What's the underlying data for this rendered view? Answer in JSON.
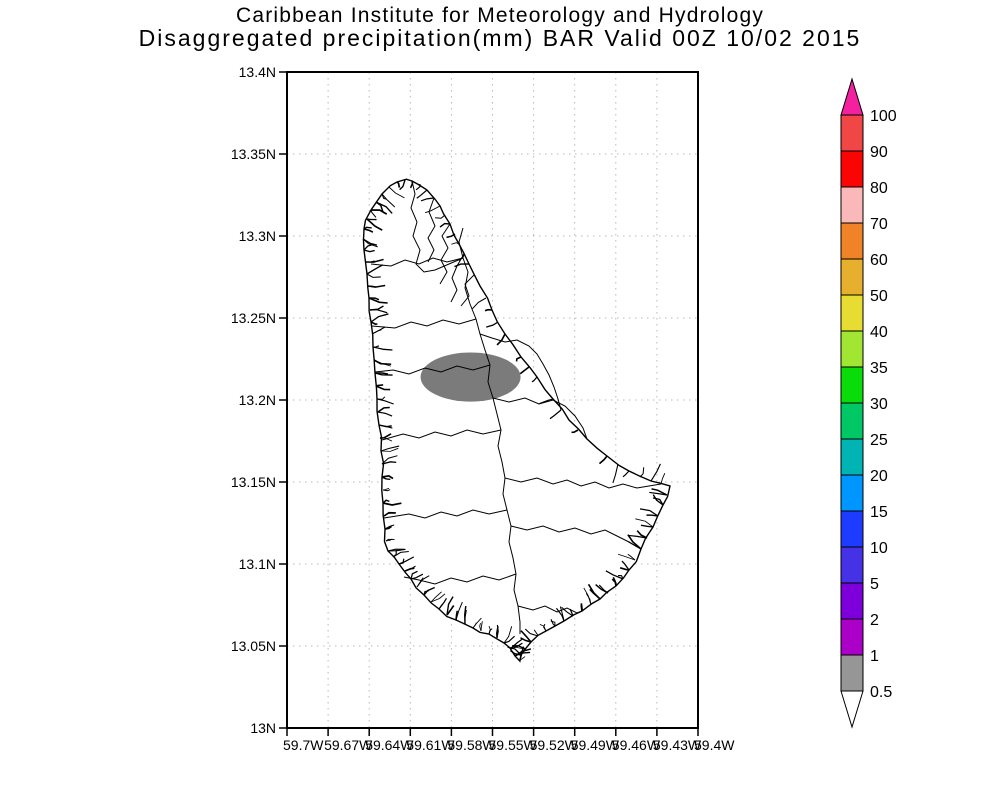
{
  "title": {
    "line1": "Caribbean Institute for Meteorology and Hydrology",
    "line2": "Disaggregated precipitation(mm) BAR Valid 00Z 10/02 2015"
  },
  "axes": {
    "y_tick_labels": [
      "13.4N",
      "13.35N",
      "13.3N",
      "13.25N",
      "13.2N",
      "13.15N",
      "13.1N",
      "13.05N",
      "13N"
    ],
    "x_tick_labels": [
      "59.7W",
      "59.67W",
      "59.64W",
      "59.61W",
      "59.58W",
      "59.55W",
      "59.52W",
      "59.49W",
      "59.46W",
      "59.43W",
      "59.4W"
    ]
  },
  "colorbar": {
    "tick_labels": [
      "100",
      "90",
      "80",
      "70",
      "60",
      "50",
      "40",
      "35",
      "30",
      "25",
      "20",
      "15",
      "10",
      "5",
      "2",
      "1",
      "0.5"
    ],
    "segment_colors_top_to_bottom": [
      "#f04646",
      "#fb0404",
      "#fbb8b8",
      "#f08228",
      "#e6af2d",
      "#e6dc32",
      "#a0e632",
      "#0adc0a",
      "#00c864",
      "#00b4b4",
      "#0096ff",
      "#1e3cff",
      "#4632e6",
      "#7d00dc",
      "#aa00c8",
      "#969696"
    ],
    "above_max_color": "#f320a0",
    "below_min_color": "#ffffff"
  },
  "colors": {
    "background": "#ffffff",
    "map_lines": "#000000",
    "grid_dots": "#b8b8b8",
    "frame": "#000000",
    "text": "#000000",
    "island_fill": "#ffffff",
    "shaded_region_fill": "#7b7b7b"
  },
  "chart_data": {
    "type": "heatmap",
    "title": "Disaggregated precipitation(mm) BAR Valid 00Z 10/02 2015",
    "institution": "Caribbean Institute for Meteorology and Hydrology",
    "variable": "Disaggregated precipitation",
    "units": "mm",
    "station_code": "BAR",
    "valid_time": "00Z 10/02 2015",
    "region": "Barbados",
    "lon_axis": {
      "ticks_deg_w": [
        59.7,
        59.67,
        59.64,
        59.61,
        59.58,
        59.55,
        59.52,
        59.49,
        59.46,
        59.43,
        59.4
      ],
      "label_suffix": "W"
    },
    "lat_axis": {
      "ticks_deg_n": [
        13.0,
        13.05,
        13.1,
        13.15,
        13.2,
        13.25,
        13.3,
        13.35,
        13.4
      ],
      "label_suffix": "N"
    },
    "contour_levels": [
      0.5,
      1,
      2,
      5,
      10,
      15,
      20,
      25,
      30,
      35,
      40,
      50,
      60,
      70,
      80,
      90,
      100
    ],
    "grid": true,
    "legend_position": "right",
    "shaded_regions": [
      {
        "value_min": 0.5,
        "value_max": 1,
        "color": "#7b7b7b",
        "shape": "ellipse",
        "center_lon_w": 59.566,
        "center_lat_n": 13.214,
        "lon_extent_deg": 0.073,
        "lat_extent_deg": 0.03
      }
    ]
  }
}
